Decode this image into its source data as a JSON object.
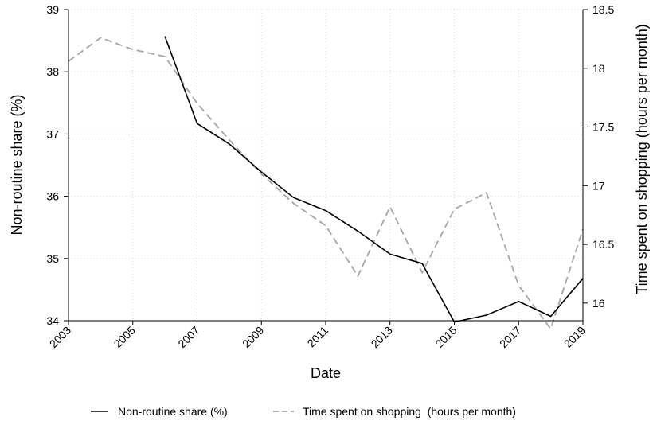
{
  "chart_data": {
    "type": "line",
    "xlabel": "Date",
    "ylabel_left": "Non-routine share (%)",
    "ylabel_right": "Time spent on shopping (hours per month)",
    "xlim": [
      2003,
      2019
    ],
    "ylim_left": [
      34,
      39
    ],
    "ylim_right": [
      15.85,
      18.5
    ],
    "x_ticks": [
      "2003",
      "2005",
      "2007",
      "2009",
      "2011",
      "2013",
      "2015",
      "2017",
      "2019"
    ],
    "y_ticks_left": [
      "34",
      "35",
      "36",
      "37",
      "38",
      "39"
    ],
    "y_ticks_right": [
      "16",
      "16.5",
      "17",
      "17.5",
      "18",
      "18.5"
    ],
    "grid": true,
    "legend_position": "bottom",
    "series": [
      {
        "name": "Non-routine share (%)",
        "axis": "left",
        "color": "#000000",
        "style": "solid",
        "x": [
          2006,
          2007,
          2008,
          2009,
          2010,
          2011,
          2012,
          2013,
          2014,
          2015,
          2016,
          2017,
          2018,
          2019
        ],
        "values": [
          38.57,
          37.17,
          36.84,
          36.39,
          35.98,
          35.77,
          35.44,
          35.07,
          34.92,
          33.98,
          34.09,
          34.31,
          34.07,
          34.68
        ]
      },
      {
        "name": "Time spent on shopping  (hours per month)",
        "axis": "right",
        "color": "#a6a6a6",
        "style": "dashed",
        "x": [
          2003,
          2004,
          2005,
          2006,
          2007,
          2008,
          2009,
          2010,
          2011,
          2012,
          2013,
          2014,
          2015,
          2016,
          2017,
          2018,
          2019
        ],
        "values": [
          18.06,
          18.26,
          18.16,
          18.1,
          17.7,
          17.39,
          17.1,
          16.85,
          16.66,
          16.23,
          16.82,
          16.26,
          16.8,
          16.94,
          16.15,
          15.78,
          16.63
        ]
      }
    ]
  }
}
